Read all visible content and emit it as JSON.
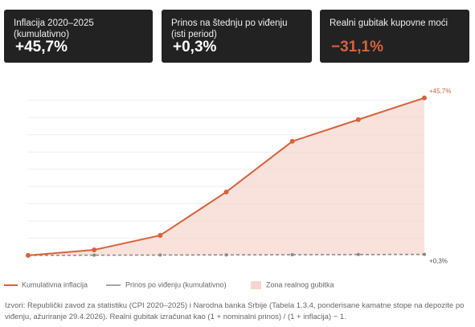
{
  "cards": [
    {
      "label": "Inflacija 2020–2025 (kumulativno)",
      "value": "+45,7%"
    },
    {
      "label": "Prinos na štednju po viđenju (isti period)",
      "value": "+0,3%"
    },
    {
      "label": "Realni gubitak kupovne moći",
      "value": "−31,1%"
    }
  ],
  "chart_data": {
    "type": "line",
    "categories": [
      null,
      null,
      null,
      null,
      null,
      null,
      null
    ],
    "series": [
      {
        "name": "Kumulativna inflacija",
        "color": "#d9623b",
        "values": [
          0,
          1.6,
          5.8,
          18.4,
          33.1,
          39.4,
          45.7
        ],
        "value_labels": [
          null,
          null,
          null,
          null,
          null,
          null,
          "+45,7%"
        ]
      },
      {
        "name": "Prinos po viđenju (kumulativno)",
        "color": "#888888",
        "values": [
          0,
          0.05,
          0.1,
          0.15,
          0.2,
          0.25,
          0.3
        ],
        "value_labels": [
          null,
          null,
          null,
          null,
          null,
          null,
          "+0,3%"
        ]
      }
    ],
    "area": {
      "name": "Zona realnog gubitka",
      "color": "#f7d5cc"
    },
    "ylim": [
      -0.5,
      48
    ],
    "yticks": [
      0,
      5,
      10,
      15,
      20,
      25,
      30,
      35,
      40,
      45
    ],
    "grid": true
  },
  "footnote": "Izvori: Republički zavod za statistiku (CPI 2020–2025) i Narodna banka Srbije (Tabela 1.3.4, ponderisane kamatne stope na depozite po viđenju, ažuriranje 29.4.2026). Realni gubitak izračunat kao (1 + nominalni prinos) / (1 + inflacija) − 1."
}
